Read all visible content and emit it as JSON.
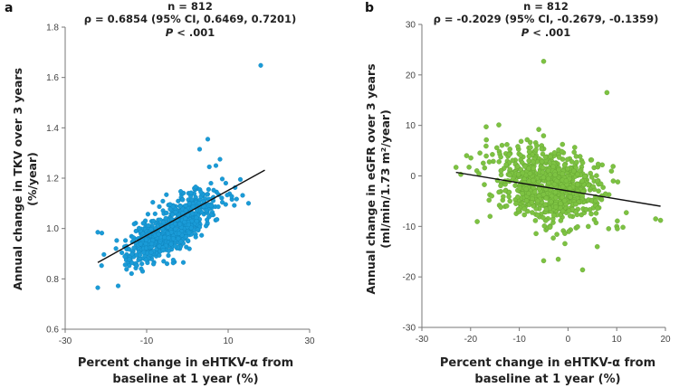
{
  "figure": {
    "panels": [
      {
        "letter": "a"
      },
      {
        "letter": "b"
      }
    ]
  },
  "chart_data": [
    {
      "type": "scatter",
      "panel": "a",
      "annotation": {
        "n": "n = 812",
        "rho": "ρ = 0.6854 (95% CI, 0.6469, 0.7201)",
        "p_symbol": "P",
        "p_rest": " < .001"
      },
      "xlabel_lines": [
        "Percent change in eHTKV-α from",
        "baseline at 1 year (%)"
      ],
      "ylabel_lines": [
        "Annual change in TKV over 3 years",
        "(%/year)"
      ],
      "xlim": [
        -30,
        30
      ],
      "ylim": [
        0.6,
        1.8
      ],
      "xticks": [
        -30,
        -10,
        10,
        30
      ],
      "xtick_labels": [
        "-30",
        "-10",
        "10",
        "30"
      ],
      "yticks": [
        0.6,
        0.8,
        1.0,
        1.2,
        1.4,
        1.6,
        1.8
      ],
      "ytick_labels": [
        "0.6",
        "0.8",
        "1.0",
        "1.2",
        "1.4",
        "1.6",
        "1.8"
      ],
      "point_color": "#1a9bd7",
      "fit_line": {
        "x": [
          -22,
          19
        ],
        "y": [
          0.865,
          1.232
        ]
      },
      "n_points": 812,
      "points": [
        [
          -22,
          0.985
        ],
        [
          -21,
          0.982
        ],
        [
          -17,
          0.772
        ],
        [
          -15,
          0.88
        ],
        [
          -11,
          0.83
        ],
        [
          -1,
          0.865
        ],
        [
          13,
          1.195
        ],
        [
          18,
          1.648
        ],
        [
          5,
          1.355
        ],
        [
          8,
          1.275
        ],
        [
          15,
          1.1
        ],
        [
          -5,
          0.86
        ],
        [
          3,
          1.315
        ],
        [
          7,
          1.25
        ]
      ],
      "cloud": {
        "x_mean": -4,
        "x_sd": 5.2,
        "slope": 0.0098,
        "intercept": 1.04,
        "resid_sd": 0.045,
        "seed": 7
      }
    },
    {
      "type": "scatter",
      "panel": "b",
      "annotation": {
        "n": "n = 812",
        "rho": "ρ = -0.2029 (95% CI, -0.2679, -0.1359)",
        "p_symbol": "P",
        "p_rest": " < .001"
      },
      "xlabel_lines": [
        "Percent change in eHTKV-α from",
        "baseline at 1 year (%)"
      ],
      "ylabel_lines": [
        "Annual change in eGFR over 3 years",
        "(ml/min/1.73 m²/year)"
      ],
      "xlim": [
        -30,
        20
      ],
      "ylim": [
        -30,
        30
      ],
      "xticks": [
        -30,
        -20,
        -10,
        0,
        10,
        20
      ],
      "xtick_labels": [
        "-30",
        "-20",
        "-10",
        "0",
        "10",
        "20"
      ],
      "yticks": [
        -30,
        -20,
        -10,
        0,
        10,
        20,
        30
      ],
      "ytick_labels": [
        "-30",
        "-20",
        "-10",
        "0",
        "10",
        "20",
        "30"
      ],
      "point_color": "#7dc242",
      "fit_line": {
        "x": [
          -23,
          19
        ],
        "y": [
          0.7,
          -6.0
        ]
      },
      "n_points": 812,
      "points": [
        [
          -5,
          22.7
        ],
        [
          8,
          16.5
        ],
        [
          -23,
          1.7
        ],
        [
          -22,
          0.3
        ],
        [
          18,
          -8.5
        ],
        [
          19,
          -8.8
        ],
        [
          -2,
          -16.5
        ],
        [
          3,
          -18.6
        ],
        [
          -5,
          -16.8
        ],
        [
          -6,
          9.2
        ],
        [
          10,
          -10
        ],
        [
          -16,
          -8
        ],
        [
          6,
          -14
        ]
      ],
      "cloud": {
        "x_mean": -4,
        "x_sd": 5.5,
        "slope": -0.16,
        "intercept": -2.5,
        "resid_sd": 3.6,
        "seed": 13
      }
    }
  ]
}
